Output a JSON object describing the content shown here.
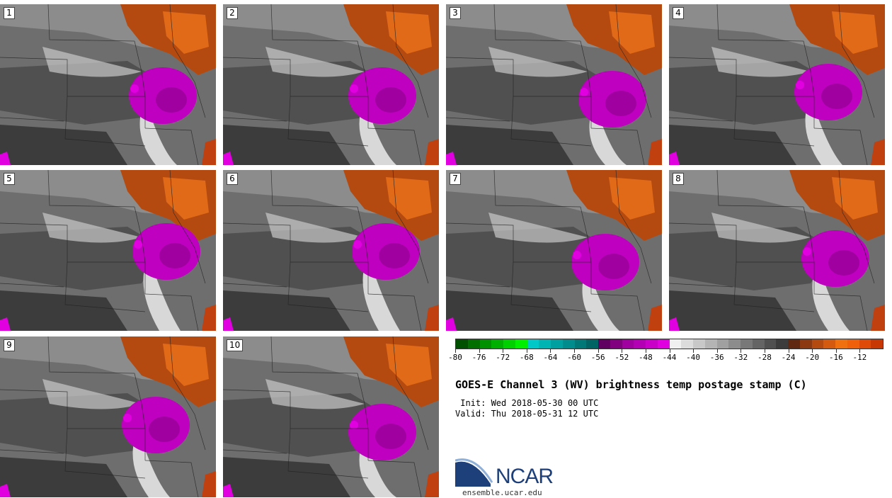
{
  "panels": [
    {
      "label": "1"
    },
    {
      "label": "2"
    },
    {
      "label": "3"
    },
    {
      "label": "4"
    },
    {
      "label": "5"
    },
    {
      "label": "6"
    },
    {
      "label": "7"
    },
    {
      "label": "8"
    },
    {
      "label": "9"
    },
    {
      "label": "10"
    }
  ],
  "colorbar": {
    "ticks": [
      "-80",
      "-76",
      "-72",
      "-68",
      "-64",
      "-60",
      "-56",
      "-52",
      "-48",
      "-44",
      "-40",
      "-36",
      "-32",
      "-28",
      "-24",
      "-20",
      "-16",
      "-12"
    ],
    "colors": [
      "#005000",
      "#006f00",
      "#009000",
      "#00b000",
      "#00d000",
      "#00ee00",
      "#00c8c8",
      "#00b4b4",
      "#00a0a0",
      "#008c8c",
      "#007878",
      "#006464",
      "#600060",
      "#800080",
      "#a000a0",
      "#b400b4",
      "#c800c8",
      "#e000e0",
      "#f0f0f0",
      "#dcdcdc",
      "#c8c8c8",
      "#b4b4b4",
      "#a0a0a0",
      "#8c8c8c",
      "#787878",
      "#646464",
      "#505050",
      "#3c3c3c",
      "#602810",
      "#8c3810",
      "#b44a10",
      "#d45a10",
      "#f07010",
      "#f0600a",
      "#e04a08",
      "#c83804"
    ]
  },
  "title": "GOES-E Channel 3 (WV) brightness temp postage stamp (C)",
  "init": " Init: Wed 2018-05-30 00 UTC",
  "valid": "Valid: Thu 2018-05-31 12 UTC",
  "logo": {
    "text": "NCAR",
    "site": "ensemble.ucar.edu"
  }
}
